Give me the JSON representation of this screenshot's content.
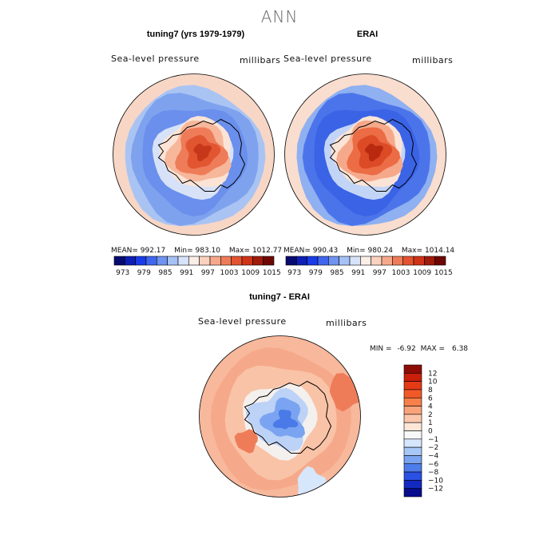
{
  "supertitle": "ANN",
  "panels": [
    {
      "title": "tuning7 (yrs 1979-1979)",
      "variable": "Sea-level pressure",
      "units": "millibars",
      "stats": {
        "mean_label": "MEAN=",
        "mean": "992.17",
        "min_label": "Min=",
        "min": "983.10",
        "max_label": "Max=",
        "max": "1012.77"
      }
    },
    {
      "title": "ERAI",
      "variable": "Sea-level pressure",
      "units": "millibars",
      "stats": {
        "mean_label": "MEAN=",
        "mean": "990.43",
        "min_label": "Min=",
        "min": "980.24",
        "max_label": "Max=",
        "max": "1014.14"
      }
    },
    {
      "title": "tuning7 - ERAI",
      "variable": "Sea-level pressure",
      "units": "millibars",
      "stats": {
        "min_label": "MIN =",
        "min": "-6.92",
        "max_label": "MAX =",
        "max": "6.38"
      }
    }
  ],
  "chart_data": [
    {
      "type": "heatmap",
      "projection": "south-polar-stereographic",
      "title": "tuning7 (yrs 1979-1979)",
      "variable": "Sea-level pressure",
      "units": "millibars",
      "stats": {
        "mean": 992.17,
        "min": 983.1,
        "max": 1012.77
      },
      "colorbar": {
        "levels": [
          973,
          979,
          985,
          991,
          997,
          1003,
          1009,
          1015
        ],
        "tick_labels": [
          "973",
          "979",
          "985",
          "991",
          "997",
          "1003",
          "1009",
          "1015"
        ],
        "colors": [
          "#070a6e",
          "#0d1fb4",
          "#1a3be8",
          "#3f66ee",
          "#6f93f0",
          "#a6c1f5",
          "#d6e3fa",
          "#faeee6",
          "#fbd1bf",
          "#f6a98a",
          "#ef7c59",
          "#e45331",
          "#cf3418",
          "#a01b0b",
          "#6e0704"
        ]
      }
    },
    {
      "type": "heatmap",
      "projection": "south-polar-stereographic",
      "title": "ERAI",
      "variable": "Sea-level pressure",
      "units": "millibars",
      "stats": {
        "mean": 990.43,
        "min": 980.24,
        "max": 1014.14
      },
      "colorbar": {
        "levels": [
          973,
          979,
          985,
          991,
          997,
          1003,
          1009,
          1015
        ],
        "tick_labels": [
          "973",
          "979",
          "985",
          "991",
          "997",
          "1003",
          "1009",
          "1015"
        ],
        "colors": [
          "#070a6e",
          "#0d1fb4",
          "#1a3be8",
          "#3f66ee",
          "#6f93f0",
          "#a6c1f5",
          "#d6e3fa",
          "#faeee6",
          "#fbd1bf",
          "#f6a98a",
          "#ef7c59",
          "#e45331",
          "#cf3418",
          "#a01b0b",
          "#6e0704"
        ]
      }
    },
    {
      "type": "heatmap",
      "projection": "south-polar-stereographic",
      "title": "tuning7 - ERAI",
      "variable": "Sea-level pressure",
      "units": "millibars",
      "stats": {
        "min": -6.92,
        "max": 6.38
      },
      "colorbar": {
        "orientation": "vertical",
        "levels": [
          -12,
          -10,
          -8,
          -6,
          -4,
          -2,
          -1,
          0,
          1,
          2,
          4,
          6,
          8,
          10,
          12
        ],
        "tick_labels": [
          "12",
          "10",
          "8",
          "6",
          "4",
          "2",
          "1",
          "0",
          "−1",
          "−2",
          "−4",
          "−6",
          "−8",
          "−10",
          "−12"
        ],
        "colors": [
          "#8e0c06",
          "#c91f0b",
          "#e53a16",
          "#f15a28",
          "#f77f4a",
          "#f9a37b",
          "#fbc7ac",
          "#fde6d8",
          "#f8f8f8",
          "#d6e6fb",
          "#a7c7f6",
          "#7aa4f1",
          "#4f7ceb",
          "#2a50e4",
          "#1329c0",
          "#070c8c"
        ]
      }
    }
  ]
}
